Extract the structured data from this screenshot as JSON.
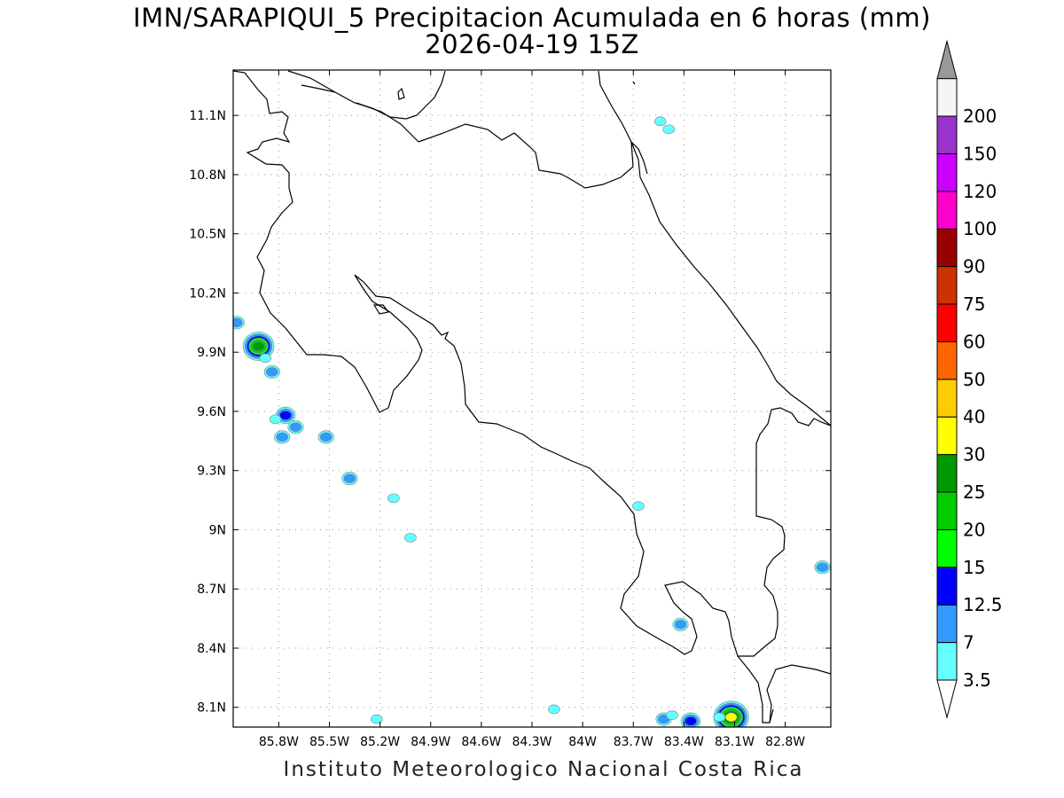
{
  "title_line1": "IMN/SARAPIQUI_5 Precipitacion Acumulada en 6 horas (mm)",
  "title_line2": "2026-04-19 15Z",
  "footer": "Instituto Meteorologico Nacional Costa Rica",
  "map": {
    "lon_range": [
      -86.07,
      -82.53
    ],
    "lat_range": [
      8.0,
      11.33
    ],
    "lon_ticks": [
      {
        "value": -85.8,
        "label": "85.8W"
      },
      {
        "value": -85.5,
        "label": "85.5W"
      },
      {
        "value": -85.2,
        "label": "85.2W"
      },
      {
        "value": -84.9,
        "label": "84.9W"
      },
      {
        "value": -84.6,
        "label": "84.6W"
      },
      {
        "value": -84.3,
        "label": "84.3W"
      },
      {
        "value": -84.0,
        "label": "84W"
      },
      {
        "value": -83.7,
        "label": "83.7W"
      },
      {
        "value": -83.4,
        "label": "83.4W"
      },
      {
        "value": -83.1,
        "label": "83.1W"
      },
      {
        "value": -82.8,
        "label": "82.8W"
      }
    ],
    "lat_ticks": [
      {
        "value": 11.1,
        "label": "11.1N"
      },
      {
        "value": 10.8,
        "label": "10.8N"
      },
      {
        "value": 10.5,
        "label": "10.5N"
      },
      {
        "value": 10.2,
        "label": "10.2N"
      },
      {
        "value": 9.9,
        "label": "9.9N"
      },
      {
        "value": 9.6,
        "label": "9.6N"
      },
      {
        "value": 9.3,
        "label": "9.3N"
      },
      {
        "value": 9.0,
        "label": "9N"
      },
      {
        "value": 8.7,
        "label": "8.7N"
      },
      {
        "value": 8.4,
        "label": "8.4N"
      },
      {
        "value": 8.1,
        "label": "8.1N"
      }
    ],
    "grid": true,
    "precip_cells": [
      {
        "lon": -86.05,
        "lat": 10.05,
        "level": 7
      },
      {
        "lon": -85.92,
        "lat": 9.93,
        "level": 25
      },
      {
        "lon": -85.88,
        "lat": 9.87,
        "level": 3.5
      },
      {
        "lon": -85.84,
        "lat": 9.8,
        "level": 7
      },
      {
        "lon": -85.76,
        "lat": 9.58,
        "level": 12.5
      },
      {
        "lon": -85.82,
        "lat": 9.56,
        "level": 3.5
      },
      {
        "lon": -85.7,
        "lat": 9.52,
        "level": 7
      },
      {
        "lon": -85.78,
        "lat": 9.47,
        "level": 7
      },
      {
        "lon": -85.52,
        "lat": 9.47,
        "level": 7
      },
      {
        "lon": -85.38,
        "lat": 9.26,
        "level": 7
      },
      {
        "lon": -85.12,
        "lat": 9.16,
        "level": 3.5
      },
      {
        "lon": -85.02,
        "lat": 8.96,
        "level": 3.5
      },
      {
        "lon": -83.54,
        "lat": 11.07,
        "level": 3.5
      },
      {
        "lon": -83.49,
        "lat": 11.03,
        "level": 3.5
      },
      {
        "lon": -83.67,
        "lat": 9.12,
        "level": 3.5
      },
      {
        "lon": -83.42,
        "lat": 8.52,
        "level": 7
      },
      {
        "lon": -82.58,
        "lat": 8.81,
        "level": 7
      },
      {
        "lon": -84.17,
        "lat": 8.09,
        "level": 3.5
      },
      {
        "lon": -83.52,
        "lat": 8.04,
        "level": 7
      },
      {
        "lon": -83.47,
        "lat": 8.06,
        "level": 3.5
      },
      {
        "lon": -83.36,
        "lat": 8.03,
        "level": 12.5
      },
      {
        "lon": -83.12,
        "lat": 8.05,
        "level": 30
      },
      {
        "lon": -83.19,
        "lat": 8.05,
        "level": 3.5
      },
      {
        "lon": -85.22,
        "lat": 8.04,
        "level": 3.5
      }
    ]
  },
  "colorbar": {
    "levels": [
      {
        "label": "3.5",
        "color": "#66ffff"
      },
      {
        "label": "7",
        "color": "#3399ff"
      },
      {
        "label": "12.5",
        "color": "#0000ff"
      },
      {
        "label": "15",
        "color": "#00ff00"
      },
      {
        "label": "20",
        "color": "#00cc00"
      },
      {
        "label": "25",
        "color": "#009900"
      },
      {
        "label": "30",
        "color": "#ffff00"
      },
      {
        "label": "40",
        "color": "#ffcc00"
      },
      {
        "label": "50",
        "color": "#ff6600"
      },
      {
        "label": "60",
        "color": "#ff0000"
      },
      {
        "label": "75",
        "color": "#cc3300"
      },
      {
        "label": "90",
        "color": "#990000"
      },
      {
        "label": "100",
        "color": "#ff00cc"
      },
      {
        "label": "120",
        "color": "#cc00ff"
      },
      {
        "label": "150",
        "color": "#9933cc"
      },
      {
        "label": "200",
        "color": "#f5f5f5"
      }
    ],
    "top_color": "#999999",
    "bottom_color": "#ffffff"
  }
}
